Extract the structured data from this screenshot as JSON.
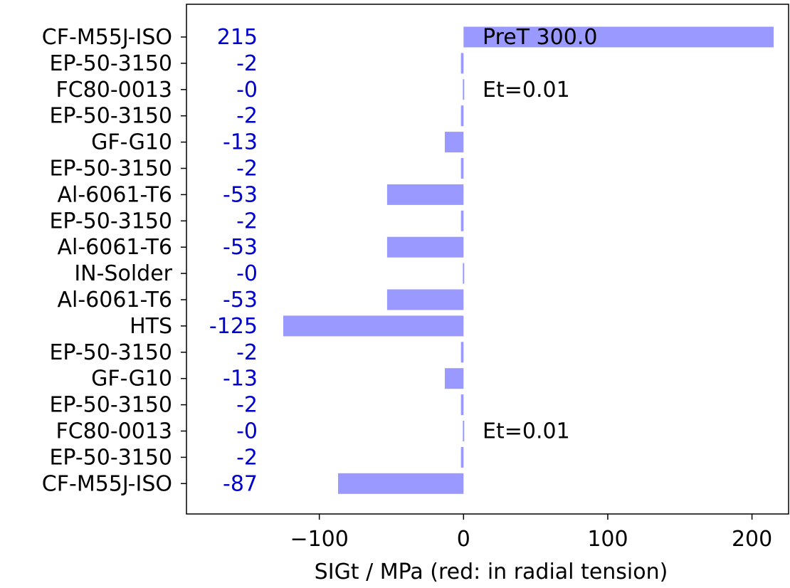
{
  "chart_data": {
    "type": "bar",
    "orientation": "horizontal",
    "categories": [
      "CF-M55J-ISO",
      "EP-50-3150",
      "FC80-0013",
      "EP-50-3150",
      "GF-G10",
      "EP-50-3150",
      "Al-6061-T6",
      "EP-50-3150",
      "Al-6061-T6",
      "IN-Solder",
      "Al-6061-T6",
      "HTS",
      "EP-50-3150",
      "GF-G10",
      "EP-50-3150",
      "FC80-0013",
      "EP-50-3150",
      "CF-M55J-ISO"
    ],
    "values": [
      215.0,
      -1.8,
      -0.3,
      -1.8,
      -13.0,
      -1.8,
      -53.0,
      -1.8,
      -53.0,
      -0.3,
      -53.0,
      -125.0,
      -1.8,
      -13.0,
      -1.8,
      -0.3,
      -1.8,
      -87.0
    ],
    "value_labels": [
      "215",
      "-2",
      "-0",
      "-2",
      "-13",
      "-2",
      "-53",
      "-2",
      "-53",
      "-0",
      "-53",
      "-125",
      "-2",
      "-13",
      "-2",
      "-0",
      "-2",
      "-87"
    ],
    "xlabel": "SIGt / MPa  (red: in radial tension)",
    "ylabel": "",
    "xlim": [
      -197,
      230
    ],
    "xticks": [
      -100,
      0,
      100,
      200
    ],
    "xtick_labels": [
      "−100",
      "0",
      "100",
      "200"
    ],
    "grid": false,
    "bar_color": "#9999ff",
    "value_label_color": "#0000cc",
    "annotations": [
      {
        "text": "PreT 300.0",
        "row": 0
      },
      {
        "text": "Et=0.01",
        "row": 2
      },
      {
        "text": "Et=0.01",
        "row": 15
      }
    ]
  }
}
